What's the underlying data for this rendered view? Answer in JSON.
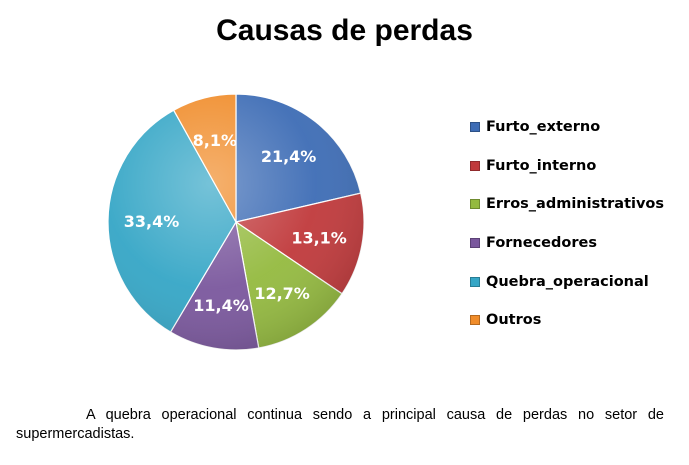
{
  "chart_data": {
    "type": "pie",
    "title": "Causas de perdas",
    "categories": [
      "Furto_externo",
      "Furto_interno",
      "Erros_administrativos",
      "Fornecedores",
      "Quebra_operacional",
      "Outros"
    ],
    "values": [
      21.4,
      13.1,
      12.7,
      11.4,
      33.4,
      8.1
    ],
    "data_labels": [
      "21,4%",
      "13,1%",
      "12,7%",
      "11,4%",
      "33,4%",
      "8,1%"
    ],
    "colors": [
      "#3D6CB5",
      "#C0393B",
      "#94BA3F",
      "#7A579D",
      "#35A6C6",
      "#F08C2A"
    ],
    "legend_position": "right"
  },
  "caption": "A quebra operacional continua sendo a principal causa de perdas no setor de supermercadistas."
}
